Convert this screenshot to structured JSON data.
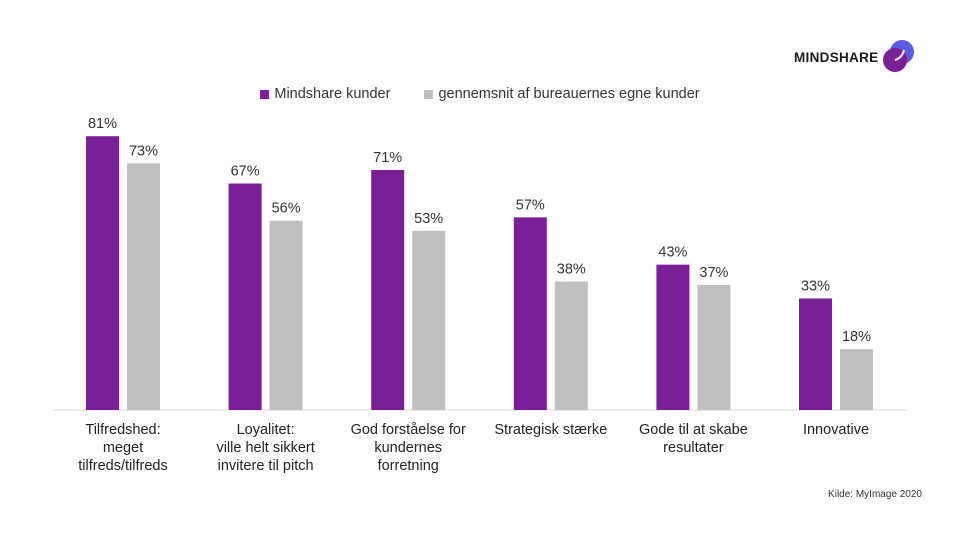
{
  "logo": {
    "text": "MINDSHARE",
    "icon": "mindshare-logo-icon"
  },
  "source": "Kilde: MyImage  2020",
  "chart_data": {
    "type": "bar",
    "categories": [
      [
        "Tilfredshed:",
        "meget",
        "tilfreds/tilfreds"
      ],
      [
        "Loyalitet:",
        "ville helt sikkert",
        "invitere til pitch"
      ],
      [
        "God forståelse for",
        "kundernes",
        "forretning"
      ],
      [
        "Strategisk stærke"
      ],
      [
        "Gode til at skabe",
        "resultater"
      ],
      [
        "Innovative"
      ]
    ],
    "series": [
      {
        "name": "Mindshare kunder",
        "color": "#7b1f99",
        "values": [
          81,
          67,
          71,
          57,
          43,
          33
        ],
        "labels": [
          "81%",
          "67%",
          "71%",
          "57%",
          "43%",
          "33%"
        ]
      },
      {
        "name": "gennemsnit af bureauernes egne kunder",
        "color": "#bfbfbf",
        "values": [
          73,
          56,
          53,
          38,
          37,
          18
        ],
        "labels": [
          "73%",
          "56%",
          "53%",
          "38%",
          "37%",
          "18%"
        ]
      }
    ],
    "ylim": [
      0,
      100
    ],
    "unit": "%",
    "grid": false,
    "legend_position": "top-center"
  }
}
